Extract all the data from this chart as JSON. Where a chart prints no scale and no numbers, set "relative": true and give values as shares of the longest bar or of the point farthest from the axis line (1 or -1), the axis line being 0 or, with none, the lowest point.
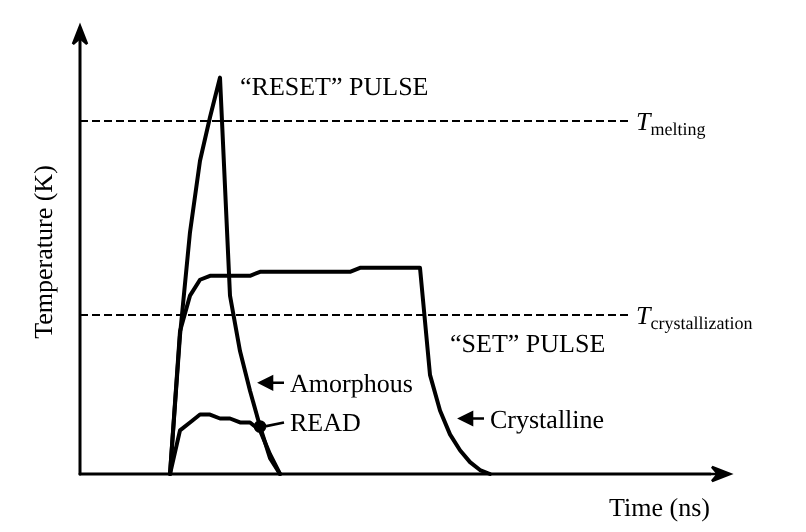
{
  "chart_data": {
    "type": "line",
    "relative": true,
    "xlabel": "Time (ns)",
    "ylabel": "Temperature (K)",
    "categories": [
      null,
      null,
      null,
      null,
      null,
      null,
      null,
      null,
      null,
      null,
      null,
      null,
      null,
      null,
      null,
      null,
      null,
      null,
      null,
      null,
      null,
      null,
      null,
      null,
      null,
      null,
      null,
      null,
      null,
      null,
      null,
      null,
      null,
      null,
      null,
      null,
      null,
      null,
      null,
      null,
      null,
      null,
      null,
      null,
      null,
      null,
      null,
      null,
      null,
      null,
      null,
      null,
      null,
      null,
      null,
      null,
      null,
      null,
      null,
      null,
      null,
      null,
      null,
      null
    ],
    "series": [
      {
        "color": "#000000",
        "values": [
          null,
          null,
          null,
          null,
          null,
          null,
          null,
          null,
          null,
          0,
          0.35,
          0.61,
          0.79,
          0.9,
          1,
          0.45,
          0.31,
          0.21,
          0.12,
          0.04,
          0,
          null,
          null,
          null,
          null,
          null,
          null,
          null,
          null,
          null,
          null,
          null,
          null,
          null,
          null,
          null,
          null,
          null,
          null,
          null,
          null,
          null,
          null,
          null,
          null,
          null,
          null,
          null,
          null,
          null,
          null,
          null,
          null,
          null,
          null,
          null,
          null,
          null,
          null,
          null,
          null,
          null,
          null,
          null
        ]
      },
      {
        "color": "#000000",
        "values": [
          null,
          null,
          null,
          null,
          null,
          null,
          null,
          null,
          null,
          0,
          0.36,
          0.45,
          0.49,
          0.5,
          0.5,
          0.5,
          0.5,
          0.5,
          0.51,
          0.51,
          0.51,
          0.51,
          0.51,
          0.51,
          0.51,
          0.51,
          0.51,
          0.51,
          0.52,
          0.52,
          0.52,
          0.52,
          0.52,
          0.52,
          0.52,
          0.25,
          0.16,
          0.1,
          0.06,
          0.03,
          0.01,
          0,
          null,
          null,
          null,
          null,
          null,
          null,
          null,
          null,
          null,
          null,
          null,
          null,
          null,
          null,
          null,
          null,
          null,
          null,
          null,
          null,
          null,
          null
        ]
      },
      {
        "color": "#000000",
        "values": [
          null,
          null,
          null,
          null,
          null,
          null,
          null,
          null,
          null,
          0,
          0.11,
          0.13,
          0.15,
          0.15,
          0.14,
          0.14,
          0.13,
          0.13,
          0.11,
          0.05,
          0,
          null,
          null,
          null,
          null,
          null,
          null,
          null,
          null,
          null,
          null,
          null,
          null,
          null,
          null,
          null,
          null,
          null,
          null,
          null,
          null,
          null,
          null,
          null,
          null,
          null,
          null,
          null,
          null,
          null,
          null,
          null,
          null,
          null,
          null,
          null,
          null,
          null,
          null,
          null,
          null,
          null,
          null,
          null
        ]
      }
    ],
    "ref_lines": [
      {
        "axis": "y",
        "value": 0.89,
        "label": "T$_{melting}$",
        "line_style": "dashed",
        "color": "#000000"
      },
      {
        "axis": "y",
        "value": 0.4,
        "label": "T$_{crystallization}$",
        "line_style": "dashed",
        "color": "#000000"
      }
    ],
    "annotations": [
      "“RESET” PULSE",
      "“SET” PULSE",
      "Amorphous",
      "READ",
      "Crystalline"
    ],
    "line_style": "solid",
    "marker": "none",
    "grid": false
  }
}
